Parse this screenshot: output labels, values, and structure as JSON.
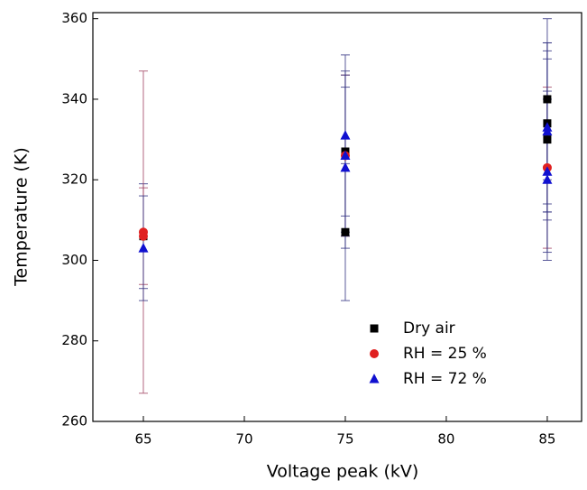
{
  "chart_data": {
    "type": "scatter",
    "x_label": "Voltage peak (kV)",
    "y_label": "Temperature (K)",
    "xlim": [
      62.5,
      86.7
    ],
    "ylim": [
      260,
      361.5
    ],
    "xticks": [
      65,
      70,
      75,
      80,
      85
    ],
    "yticks": [
      260,
      280,
      300,
      320,
      340,
      360
    ],
    "legend": "lower right",
    "series": [
      {
        "name": "Dry air",
        "color": "#000000",
        "marker": "square",
        "x": [
          65,
          75,
          75,
          85,
          85,
          85
        ],
        "values": [
          306,
          327,
          307,
          340,
          334,
          330
        ],
        "errors": [
          13,
          20,
          17,
          20,
          20,
          20
        ]
      },
      {
        "name": "RH = 25 %",
        "color": "#e02020",
        "marker": "circle",
        "x": [
          65,
          65,
          75,
          85
        ],
        "values": [
          307,
          306,
          326,
          323
        ],
        "errors": [
          40,
          12,
          20,
          20
        ]
      },
      {
        "name": "RH = 72 %",
        "color": "#1010d0",
        "marker": "triangle",
        "x": [
          65,
          75,
          75,
          75,
          85,
          85,
          85,
          85
        ],
        "values": [
          303,
          331,
          326,
          323,
          333,
          332,
          322,
          320
        ],
        "errors": [
          13,
          20,
          20,
          20,
          21,
          20,
          20,
          20
        ]
      }
    ]
  }
}
